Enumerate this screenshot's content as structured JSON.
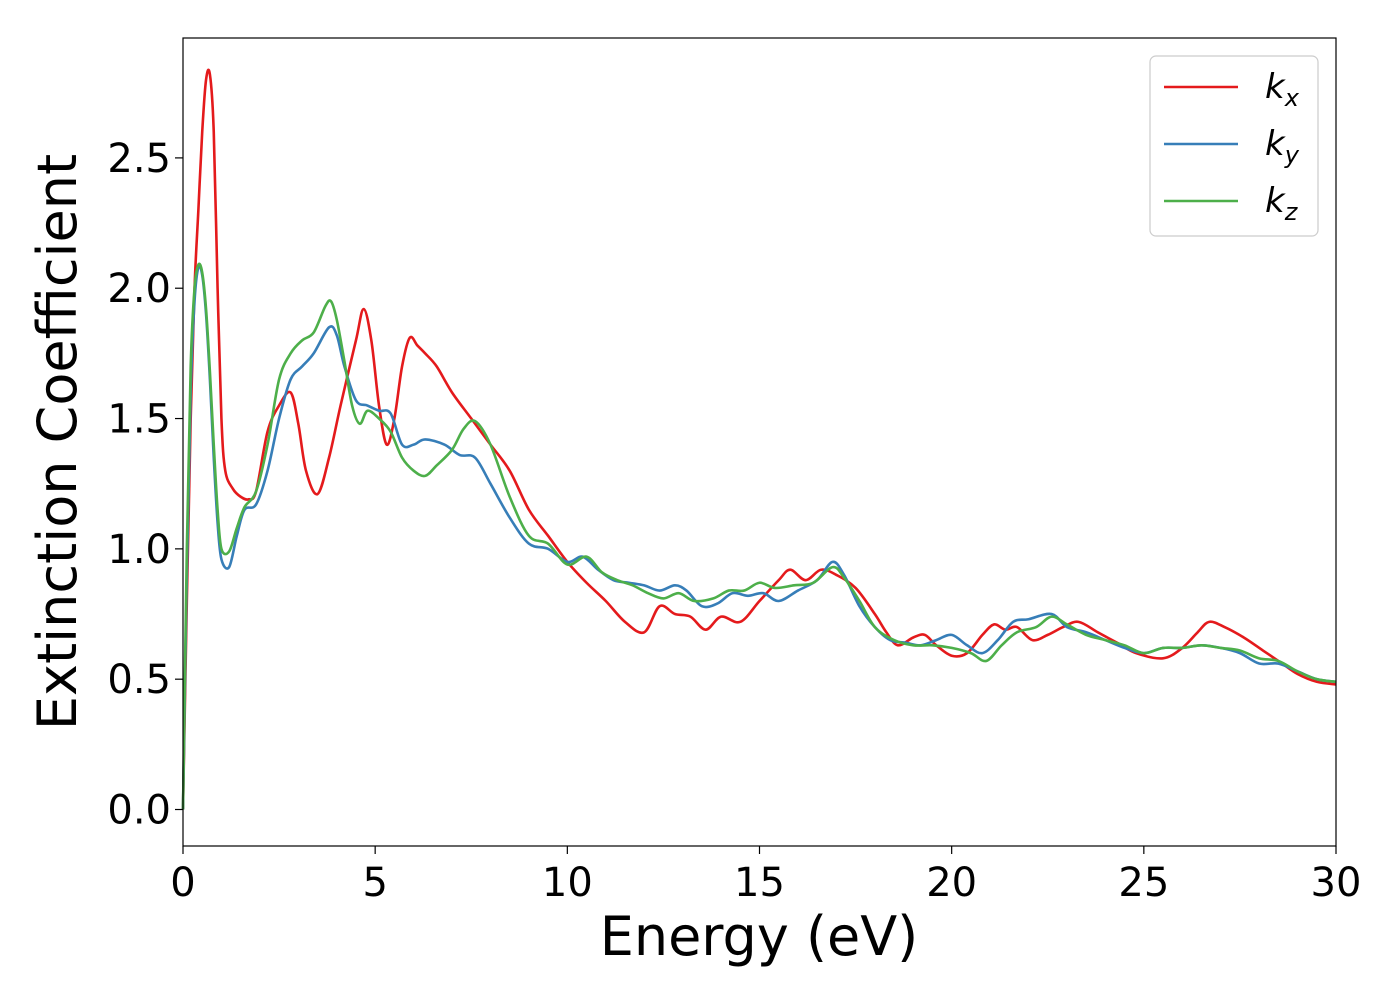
{
  "chart_data": {
    "type": "line",
    "title": "",
    "xlabel": "Energy (eV)",
    "ylabel": "Extinction Coefficient",
    "xlim": [
      0,
      30
    ],
    "ylim": [
      -0.14,
      2.96
    ],
    "xticks": [
      0,
      5,
      10,
      15,
      20,
      25,
      30
    ],
    "yticks": [
      0.0,
      0.5,
      1.0,
      1.5,
      2.0,
      2.5
    ],
    "xtick_labels": [
      "0",
      "5",
      "10",
      "15",
      "20",
      "25",
      "30"
    ],
    "ytick_labels": [
      "0.0",
      "0.5",
      "1.0",
      "1.5",
      "2.0",
      "2.5"
    ],
    "grid": false,
    "legend_position": "top-right",
    "series": [
      {
        "name": "k",
        "subscript": "x",
        "color": "#e41a1c",
        "points": [
          [
            0,
            0
          ],
          [
            0.1,
            0.8
          ],
          [
            0.2,
            1.5
          ],
          [
            0.3,
            2.0
          ],
          [
            0.4,
            2.3
          ],
          [
            0.5,
            2.6
          ],
          [
            0.6,
            2.8
          ],
          [
            0.7,
            2.82
          ],
          [
            0.8,
            2.6
          ],
          [
            0.9,
            2.0
          ],
          [
            1.0,
            1.5
          ],
          [
            1.1,
            1.3
          ],
          [
            1.3,
            1.23
          ],
          [
            1.5,
            1.2
          ],
          [
            1.7,
            1.19
          ],
          [
            1.9,
            1.22
          ],
          [
            2.2,
            1.45
          ],
          [
            2.5,
            1.55
          ],
          [
            2.8,
            1.6
          ],
          [
            3.0,
            1.48
          ],
          [
            3.2,
            1.3
          ],
          [
            3.5,
            1.21
          ],
          [
            3.8,
            1.35
          ],
          [
            4.1,
            1.55
          ],
          [
            4.5,
            1.8
          ],
          [
            4.7,
            1.92
          ],
          [
            4.9,
            1.8
          ],
          [
            5.1,
            1.55
          ],
          [
            5.3,
            1.4
          ],
          [
            5.5,
            1.5
          ],
          [
            5.7,
            1.7
          ],
          [
            5.9,
            1.81
          ],
          [
            6.1,
            1.78
          ],
          [
            6.3,
            1.75
          ],
          [
            6.6,
            1.7
          ],
          [
            7.0,
            1.6
          ],
          [
            7.5,
            1.5
          ],
          [
            8.0,
            1.4
          ],
          [
            8.5,
            1.3
          ],
          [
            9.0,
            1.15
          ],
          [
            9.5,
            1.05
          ],
          [
            10.0,
            0.95
          ],
          [
            10.5,
            0.87
          ],
          [
            11.0,
            0.8
          ],
          [
            11.5,
            0.72
          ],
          [
            12.0,
            0.68
          ],
          [
            12.4,
            0.78
          ],
          [
            12.8,
            0.75
          ],
          [
            13.2,
            0.74
          ],
          [
            13.6,
            0.69
          ],
          [
            14.0,
            0.74
          ],
          [
            14.5,
            0.72
          ],
          [
            15.0,
            0.8
          ],
          [
            15.5,
            0.88
          ],
          [
            15.8,
            0.92
          ],
          [
            16.2,
            0.88
          ],
          [
            16.6,
            0.92
          ],
          [
            17.0,
            0.9
          ],
          [
            17.5,
            0.85
          ],
          [
            18.0,
            0.75
          ],
          [
            18.3,
            0.68
          ],
          [
            18.6,
            0.63
          ],
          [
            19.0,
            0.66
          ],
          [
            19.3,
            0.67
          ],
          [
            19.6,
            0.63
          ],
          [
            20.0,
            0.59
          ],
          [
            20.4,
            0.6
          ],
          [
            20.8,
            0.67
          ],
          [
            21.1,
            0.71
          ],
          [
            21.4,
            0.69
          ],
          [
            21.7,
            0.7
          ],
          [
            22.1,
            0.65
          ],
          [
            22.5,
            0.67
          ],
          [
            22.9,
            0.7
          ],
          [
            23.3,
            0.72
          ],
          [
            23.8,
            0.68
          ],
          [
            24.3,
            0.64
          ],
          [
            24.8,
            0.6
          ],
          [
            25.5,
            0.58
          ],
          [
            26.0,
            0.62
          ],
          [
            26.4,
            0.68
          ],
          [
            26.7,
            0.72
          ],
          [
            27.1,
            0.7
          ],
          [
            27.6,
            0.66
          ],
          [
            28.1,
            0.61
          ],
          [
            28.6,
            0.56
          ],
          [
            29.0,
            0.52
          ],
          [
            29.5,
            0.49
          ],
          [
            30,
            0.48
          ]
        ]
      },
      {
        "name": "k",
        "subscript": "y",
        "color": "#377eb8",
        "points": [
          [
            0,
            0
          ],
          [
            0.1,
            0.9
          ],
          [
            0.2,
            1.6
          ],
          [
            0.3,
            1.95
          ],
          [
            0.4,
            2.08
          ],
          [
            0.5,
            2.05
          ],
          [
            0.6,
            1.9
          ],
          [
            0.7,
            1.65
          ],
          [
            0.8,
            1.35
          ],
          [
            0.9,
            1.1
          ],
          [
            1.0,
            0.96
          ],
          [
            1.2,
            0.93
          ],
          [
            1.4,
            1.05
          ],
          [
            1.6,
            1.15
          ],
          [
            1.9,
            1.17
          ],
          [
            2.2,
            1.3
          ],
          [
            2.5,
            1.5
          ],
          [
            2.8,
            1.65
          ],
          [
            3.1,
            1.7
          ],
          [
            3.4,
            1.75
          ],
          [
            3.8,
            1.85
          ],
          [
            4.0,
            1.82
          ],
          [
            4.2,
            1.7
          ],
          [
            4.5,
            1.57
          ],
          [
            4.8,
            1.55
          ],
          [
            5.1,
            1.53
          ],
          [
            5.4,
            1.52
          ],
          [
            5.7,
            1.4
          ],
          [
            6.0,
            1.4
          ],
          [
            6.3,
            1.42
          ],
          [
            6.8,
            1.4
          ],
          [
            7.2,
            1.36
          ],
          [
            7.6,
            1.35
          ],
          [
            8.0,
            1.25
          ],
          [
            8.5,
            1.12
          ],
          [
            9.0,
            1.02
          ],
          [
            9.5,
            1.0
          ],
          [
            10.0,
            0.95
          ],
          [
            10.4,
            0.97
          ],
          [
            10.8,
            0.92
          ],
          [
            11.2,
            0.88
          ],
          [
            11.6,
            0.87
          ],
          [
            12.0,
            0.86
          ],
          [
            12.4,
            0.84
          ],
          [
            12.8,
            0.86
          ],
          [
            13.1,
            0.84
          ],
          [
            13.5,
            0.78
          ],
          [
            13.9,
            0.79
          ],
          [
            14.3,
            0.83
          ],
          [
            14.7,
            0.82
          ],
          [
            15.1,
            0.83
          ],
          [
            15.5,
            0.8
          ],
          [
            16.0,
            0.84
          ],
          [
            16.5,
            0.88
          ],
          [
            16.9,
            0.95
          ],
          [
            17.2,
            0.9
          ],
          [
            17.6,
            0.78
          ],
          [
            18.0,
            0.7
          ],
          [
            18.4,
            0.65
          ],
          [
            18.8,
            0.64
          ],
          [
            19.2,
            0.63
          ],
          [
            19.6,
            0.65
          ],
          [
            20.0,
            0.67
          ],
          [
            20.4,
            0.63
          ],
          [
            20.8,
            0.6
          ],
          [
            21.2,
            0.65
          ],
          [
            21.6,
            0.72
          ],
          [
            22.0,
            0.73
          ],
          [
            22.6,
            0.75
          ],
          [
            23.0,
            0.7
          ],
          [
            23.5,
            0.68
          ],
          [
            24.0,
            0.65
          ],
          [
            24.5,
            0.62
          ],
          [
            25.0,
            0.6
          ],
          [
            25.5,
            0.62
          ],
          [
            26.0,
            0.62
          ],
          [
            26.5,
            0.63
          ],
          [
            27.0,
            0.62
          ],
          [
            27.5,
            0.6
          ],
          [
            28.0,
            0.56
          ],
          [
            28.5,
            0.56
          ],
          [
            29.0,
            0.53
          ],
          [
            29.5,
            0.5
          ],
          [
            30,
            0.49
          ]
        ]
      },
      {
        "name": "k",
        "subscript": "z",
        "color": "#4daf4a",
        "points": [
          [
            0,
            0
          ],
          [
            0.1,
            1.0
          ],
          [
            0.2,
            1.7
          ],
          [
            0.3,
            2.0
          ],
          [
            0.4,
            2.09
          ],
          [
            0.5,
            2.06
          ],
          [
            0.6,
            1.92
          ],
          [
            0.7,
            1.68
          ],
          [
            0.8,
            1.4
          ],
          [
            0.9,
            1.15
          ],
          [
            1.0,
            1.0
          ],
          [
            1.2,
            0.99
          ],
          [
            1.4,
            1.08
          ],
          [
            1.6,
            1.16
          ],
          [
            1.9,
            1.22
          ],
          [
            2.2,
            1.4
          ],
          [
            2.5,
            1.65
          ],
          [
            2.8,
            1.75
          ],
          [
            3.1,
            1.8
          ],
          [
            3.4,
            1.83
          ],
          [
            3.7,
            1.93
          ],
          [
            3.85,
            1.95
          ],
          [
            4.0,
            1.88
          ],
          [
            4.2,
            1.72
          ],
          [
            4.4,
            1.55
          ],
          [
            4.6,
            1.48
          ],
          [
            4.8,
            1.53
          ],
          [
            5.1,
            1.5
          ],
          [
            5.4,
            1.45
          ],
          [
            5.7,
            1.35
          ],
          [
            6.0,
            1.3
          ],
          [
            6.3,
            1.28
          ],
          [
            6.6,
            1.32
          ],
          [
            7.0,
            1.38
          ],
          [
            7.3,
            1.46
          ],
          [
            7.6,
            1.49
          ],
          [
            8.0,
            1.4
          ],
          [
            8.5,
            1.2
          ],
          [
            9.0,
            1.05
          ],
          [
            9.5,
            1.02
          ],
          [
            10.0,
            0.94
          ],
          [
            10.5,
            0.97
          ],
          [
            10.9,
            0.91
          ],
          [
            11.3,
            0.88
          ],
          [
            11.7,
            0.86
          ],
          [
            12.1,
            0.83
          ],
          [
            12.5,
            0.81
          ],
          [
            12.9,
            0.83
          ],
          [
            13.3,
            0.8
          ],
          [
            13.8,
            0.81
          ],
          [
            14.2,
            0.84
          ],
          [
            14.6,
            0.84
          ],
          [
            15.0,
            0.87
          ],
          [
            15.4,
            0.85
          ],
          [
            15.9,
            0.86
          ],
          [
            16.4,
            0.87
          ],
          [
            16.9,
            0.93
          ],
          [
            17.2,
            0.89
          ],
          [
            17.6,
            0.8
          ],
          [
            18.0,
            0.7
          ],
          [
            18.5,
            0.65
          ],
          [
            19.0,
            0.63
          ],
          [
            19.5,
            0.63
          ],
          [
            20.0,
            0.62
          ],
          [
            20.5,
            0.6
          ],
          [
            20.9,
            0.57
          ],
          [
            21.3,
            0.63
          ],
          [
            21.7,
            0.68
          ],
          [
            22.2,
            0.7
          ],
          [
            22.6,
            0.74
          ],
          [
            23.0,
            0.71
          ],
          [
            23.5,
            0.67
          ],
          [
            24.0,
            0.65
          ],
          [
            24.5,
            0.63
          ],
          [
            25.0,
            0.6
          ],
          [
            25.5,
            0.62
          ],
          [
            26.0,
            0.62
          ],
          [
            26.5,
            0.63
          ],
          [
            27.0,
            0.62
          ],
          [
            27.5,
            0.61
          ],
          [
            28.0,
            0.58
          ],
          [
            28.5,
            0.57
          ],
          [
            29.0,
            0.53
          ],
          [
            29.5,
            0.5
          ],
          [
            30,
            0.49
          ]
        ]
      }
    ]
  }
}
